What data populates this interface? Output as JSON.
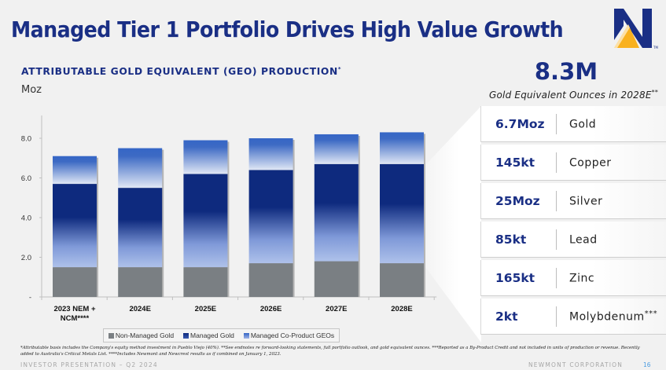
{
  "header": {
    "title": "Managed Tier 1 Portfolio Drives High Value Growth",
    "logo": "newmont-n-logo",
    "logo_mark": "TM"
  },
  "colors": {
    "brand_navy": "#1a2f85",
    "brand_gold": "#f9b11f",
    "non_managed_gold": "#7a7f83",
    "managed_gold_dark": "#0e2a7e",
    "managed_gold_light": "#a9bde8",
    "coproduct_top": "#3566c6",
    "coproduct_bottom": "#dce4f4"
  },
  "chart_data": {
    "type": "bar",
    "stacked": true,
    "title": "ATTRIBUTABLE GOLD EQUIVALENT (GEO) PRODUCTION",
    "title_marker": "*",
    "ylabel": "Moz",
    "xlabel": "",
    "ylim": [
      0,
      9
    ],
    "yticks": [
      0,
      2,
      4,
      6,
      8
    ],
    "ytick_labels": [
      "-",
      "2.0",
      "4.0",
      "6.0",
      "8.0"
    ],
    "grid": false,
    "legend_position": "bottom",
    "categories": [
      "2023 NEM + NCM****",
      "2024E",
      "2025E",
      "2026E",
      "2027E",
      "2028E"
    ],
    "series": [
      {
        "name": "Non-Managed Gold",
        "values": [
          1.5,
          1.5,
          1.5,
          1.7,
          1.8,
          1.7
        ]
      },
      {
        "name": "Managed Gold",
        "values": [
          4.2,
          4.0,
          4.7,
          4.7,
          4.9,
          5.0
        ]
      },
      {
        "name": "Managed Co-Product GEOs",
        "values": [
          1.4,
          2.0,
          1.7,
          1.6,
          1.5,
          1.6
        ]
      }
    ],
    "totals": [
      7.1,
      7.5,
      7.9,
      8.0,
      8.2,
      8.3
    ]
  },
  "callout": {
    "headline": "8.3M",
    "caption": "Gold Equivalent Ounces in 2028E",
    "caption_marker": "**",
    "rows": [
      {
        "value": "6.7Moz",
        "label": "Gold",
        "marker": ""
      },
      {
        "value": "145kt",
        "label": "Copper",
        "marker": ""
      },
      {
        "value": "25Moz",
        "label": "Silver",
        "marker": ""
      },
      {
        "value": "85kt",
        "label": "Lead",
        "marker": ""
      },
      {
        "value": "165kt",
        "label": "Zinc",
        "marker": ""
      },
      {
        "value": "2kt",
        "label": "Molybdenum",
        "marker": "***"
      }
    ]
  },
  "footnote": "*Attributable basis includes the Company's equity method investment in Pueblo Viejo (40%). **See endnotes re forward-looking statements, full portfolio outlook, and gold equivalent ounces. ***Reported as a By-Product Credit and not included in units of production or revenue. Recently added to Australia's Critical Metals List. ****Includes Newmont and Newcrest results as if combined on January 1, 2023.",
  "footer": {
    "left": "INVESTOR PRESENTATION – Q2 2024",
    "right": "NEWMONT CORPORATION",
    "page": "16"
  }
}
